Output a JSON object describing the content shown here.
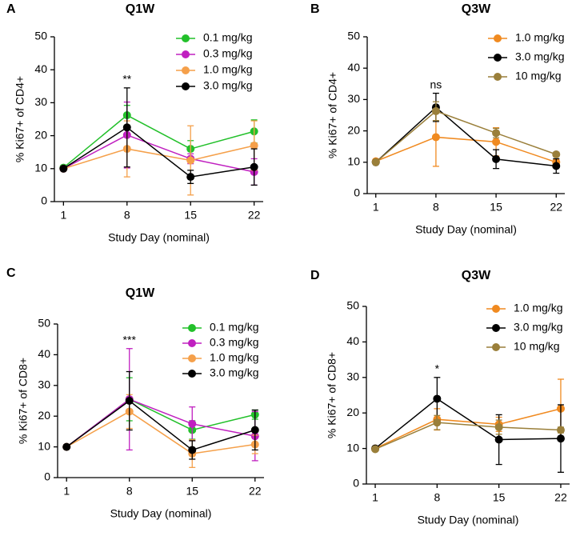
{
  "chart_data": [
    {
      "type": "line",
      "panel": "A",
      "title": "Q1W",
      "xlabel": "Study Day (nominal)",
      "ylabel": "% Ki67+ of CD4+",
      "annotation": "**",
      "x": [
        1,
        8,
        15,
        22
      ],
      "xlim": [
        0,
        23
      ],
      "xticks": [
        1,
        8,
        15,
        22
      ],
      "ylim": [
        0,
        50
      ],
      "yticks": [
        0,
        10,
        20,
        30,
        40,
        50
      ],
      "series": [
        {
          "name": "0.1 mg/kg",
          "color": "#22c02a",
          "values": [
            10.3,
            26.2,
            16,
            21.3
          ],
          "errors": [
            0.5,
            3,
            2.5,
            3.5
          ]
        },
        {
          "name": "0.3 mg/kg",
          "color": "#c020c0",
          "values": [
            10,
            20.2,
            13,
            9
          ],
          "errors": [
            0.5,
            10,
            1.5,
            4
          ]
        },
        {
          "name": "1.0 mg/kg",
          "color": "#f5a04a",
          "values": [
            10,
            16,
            12.5,
            17
          ],
          "errors": [
            0.5,
            8.5,
            10.5,
            7.5
          ]
        },
        {
          "name": "3.0 mg/kg",
          "color": "#000000",
          "values": [
            10,
            22.5,
            7.5,
            10.5
          ],
          "errors": [
            0.5,
            12,
            2,
            5.5
          ]
        }
      ]
    },
    {
      "type": "line",
      "panel": "B",
      "title": "Q3W",
      "xlabel": "Study Day (nominal)",
      "ylabel": "% Ki67+ of CD4+",
      "annotation": "ns",
      "x": [
        1,
        8,
        15,
        22
      ],
      "xlim": [
        0,
        23
      ],
      "xticks": [
        1,
        8,
        15,
        22
      ],
      "ylim": [
        0,
        50
      ],
      "yticks": [
        0,
        10,
        20,
        30,
        40,
        50
      ],
      "series": [
        {
          "name": "1.0 mg/kg",
          "color": "#f08a20",
          "values": [
            10.3,
            18,
            16.5,
            10
          ],
          "errors": [
            0.5,
            9.3,
            4.5,
            0.8
          ]
        },
        {
          "name": "3.0 mg/kg",
          "color": "#000000",
          "values": [
            10,
            27.5,
            11,
            8.8
          ],
          "errors": [
            0.5,
            4.5,
            3,
            2.3
          ]
        },
        {
          "name": "10 mg/kg",
          "color": "#9a7f3a",
          "values": [
            10,
            26.3,
            19.3,
            12.5
          ],
          "errors": [
            0.5,
            3,
            1.5,
            0.7
          ]
        }
      ]
    },
    {
      "type": "line",
      "panel": "C",
      "title": "Q1W",
      "xlabel": "Study Day (nominal)",
      "ylabel": "% Ki67+ of CD8+",
      "annotation": "***",
      "x": [
        1,
        8,
        15,
        22
      ],
      "xlim": [
        0,
        23
      ],
      "xticks": [
        1,
        8,
        15,
        22
      ],
      "ylim": [
        0,
        50
      ],
      "yticks": [
        0,
        10,
        20,
        30,
        40,
        50
      ],
      "series": [
        {
          "name": "0.1 mg/kg",
          "color": "#22c02a",
          "values": [
            10,
            25.5,
            15.5,
            20.5
          ],
          "errors": [
            0.3,
            7,
            3,
            1.5
          ]
        },
        {
          "name": "0.3 mg/kg",
          "color": "#c020c0",
          "values": [
            10,
            25.5,
            17.5,
            13.5
          ],
          "errors": [
            0.3,
            16.5,
            5.5,
            8
          ]
        },
        {
          "name": "1.0 mg/kg",
          "color": "#f5a04a",
          "values": [
            10,
            21.5,
            7.8,
            10.8
          ],
          "errors": [
            0.3,
            5.5,
            4.5,
            3
          ]
        },
        {
          "name": "3.0 mg/kg",
          "color": "#000000",
          "values": [
            10,
            25,
            9,
            15.5
          ],
          "errors": [
            0.3,
            9.5,
            3,
            6.5
          ]
        }
      ]
    },
    {
      "type": "line",
      "panel": "D",
      "title": "Q3W",
      "xlabel": "Study Day (nominal)",
      "ylabel": "% Ki67+ of CD8+",
      "annotation": "*",
      "x": [
        1,
        8,
        15,
        22
      ],
      "xlim": [
        0,
        23
      ],
      "xticks": [
        1,
        8,
        15,
        22
      ],
      "ylim": [
        0,
        50
      ],
      "yticks": [
        0,
        10,
        20,
        30,
        40,
        50
      ],
      "series": [
        {
          "name": "1.0 mg/kg",
          "color": "#f08a20",
          "values": [
            10,
            18.2,
            16.8,
            21.2
          ],
          "errors": [
            0.4,
            3,
            2,
            8.3
          ]
        },
        {
          "name": "3.0 mg/kg",
          "color": "#000000",
          "values": [
            10,
            24,
            12.5,
            12.8
          ],
          "errors": [
            0.4,
            6,
            7,
            9.5
          ]
        },
        {
          "name": "10 mg/kg",
          "color": "#9a7f3a",
          "values": [
            9.8,
            17.3,
            16,
            15.2
          ],
          "errors": [
            0.4,
            2,
            2,
            0.8
          ]
        }
      ]
    }
  ]
}
